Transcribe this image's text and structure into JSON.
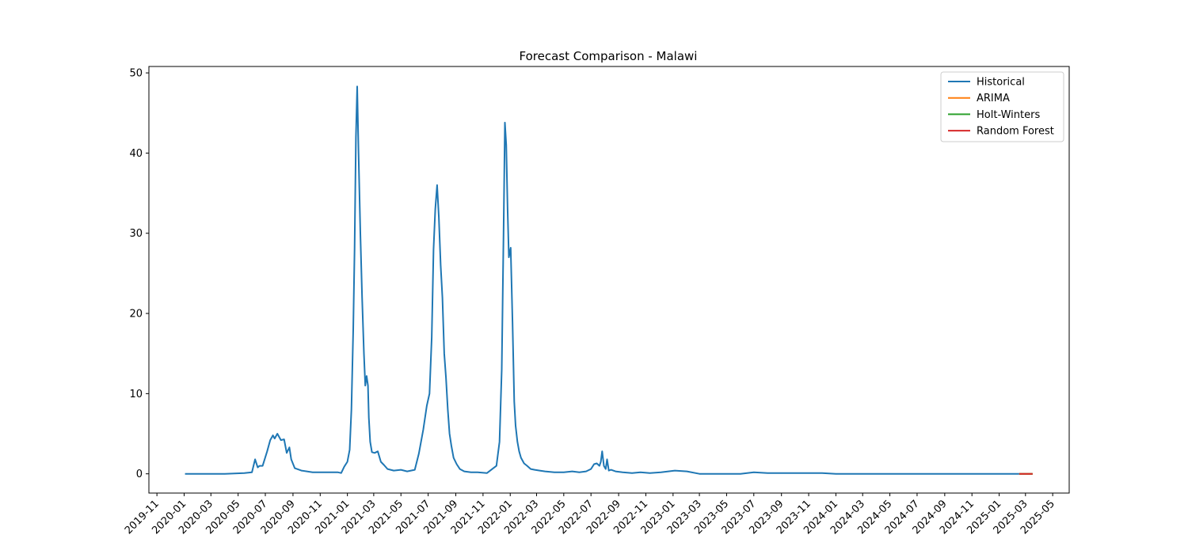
{
  "chart_data": {
    "type": "line",
    "title": "Forecast Comparison - Malawi",
    "xlabel": "",
    "ylabel": "",
    "ylim": [
      -2.4,
      50.8
    ],
    "xlim": [
      "2019-10-14",
      "2025-06-07"
    ],
    "yticks": [
      0,
      10,
      20,
      30,
      40,
      50
    ],
    "xticks": [
      "2019-11",
      "2020-01",
      "2020-03",
      "2020-05",
      "2020-07",
      "2020-09",
      "2020-11",
      "2021-01",
      "2021-03",
      "2021-05",
      "2021-07",
      "2021-09",
      "2021-11",
      "2022-01",
      "2022-03",
      "2022-05",
      "2022-07",
      "2022-09",
      "2022-11",
      "2023-01",
      "2023-03",
      "2023-05",
      "2023-07",
      "2023-09",
      "2023-11",
      "2024-01",
      "2024-03",
      "2024-05",
      "2024-07",
      "2024-09",
      "2024-11",
      "2025-01",
      "2025-03",
      "2025-05"
    ],
    "grid": false,
    "legend_position": "top-right",
    "series": [
      {
        "name": "Historical",
        "color": "#1f77b4",
        "x": [
          "2020-01-03",
          "2020-04-01",
          "2020-05-15",
          "2020-06-01",
          "2020-06-08",
          "2020-06-14",
          "2020-06-18",
          "2020-06-25",
          "2020-07-05",
          "2020-07-12",
          "2020-07-18",
          "2020-07-22",
          "2020-07-28",
          "2020-08-05",
          "2020-08-12",
          "2020-08-18",
          "2020-08-24",
          "2020-08-28",
          "2020-09-05",
          "2020-09-20",
          "2020-10-15",
          "2020-11-10",
          "2020-12-01",
          "2020-12-10",
          "2020-12-18",
          "2020-12-25",
          "2021-01-01",
          "2021-01-06",
          "2021-01-10",
          "2021-01-14",
          "2021-01-17",
          "2021-01-20",
          "2021-01-23",
          "2021-01-26",
          "2021-01-30",
          "2021-02-03",
          "2021-02-07",
          "2021-02-10",
          "2021-02-13",
          "2021-02-16",
          "2021-02-18",
          "2021-02-21",
          "2021-02-25",
          "2021-03-03",
          "2021-03-10",
          "2021-03-17",
          "2021-03-24",
          "2021-04-01",
          "2021-04-15",
          "2021-05-01",
          "2021-05-15",
          "2021-06-01",
          "2021-06-10",
          "2021-06-20",
          "2021-06-28",
          "2021-07-04",
          "2021-07-09",
          "2021-07-13",
          "2021-07-17",
          "2021-07-21",
          "2021-07-25",
          "2021-07-29",
          "2021-08-02",
          "2021-08-06",
          "2021-08-10",
          "2021-08-14",
          "2021-08-18",
          "2021-08-22",
          "2021-08-27",
          "2021-09-03",
          "2021-09-10",
          "2021-09-20",
          "2021-10-05",
          "2021-10-20",
          "2021-11-10",
          "2021-12-01",
          "2021-12-08",
          "2021-12-13",
          "2021-12-17",
          "2021-12-20",
          "2021-12-23",
          "2021-12-26",
          "2021-12-29",
          "2022-01-02",
          "2022-01-06",
          "2022-01-10",
          "2022-01-13",
          "2022-01-17",
          "2022-01-21",
          "2022-01-25",
          "2022-02-01",
          "2022-02-08",
          "2022-02-16",
          "2022-02-25",
          "2022-03-08",
          "2022-03-20",
          "2022-04-10",
          "2022-05-01",
          "2022-05-20",
          "2022-06-05",
          "2022-06-20",
          "2022-07-01",
          "2022-07-08",
          "2022-07-14",
          "2022-07-20",
          "2022-07-23",
          "2022-07-26",
          "2022-07-30",
          "2022-08-03",
          "2022-08-06",
          "2022-08-10",
          "2022-08-15",
          "2022-08-25",
          "2022-09-10",
          "2022-10-01",
          "2022-10-20",
          "2022-11-10",
          "2022-12-05",
          "2023-01-05",
          "2023-02-01",
          "2023-03-01",
          "2023-04-01",
          "2023-05-01",
          "2023-06-01",
          "2023-07-01",
          "2023-08-01",
          "2023-09-01",
          "2023-10-01",
          "2023-11-01",
          "2023-12-01",
          "2024-01-01",
          "2024-06-01",
          "2025-02-15"
        ],
        "values": [
          0.0,
          0.0,
          0.1,
          0.2,
          1.8,
          0.8,
          1.0,
          1.0,
          2.8,
          4.2,
          4.8,
          4.4,
          5.0,
          4.2,
          4.3,
          2.6,
          3.3,
          1.8,
          0.7,
          0.4,
          0.2,
          0.2,
          0.2,
          0.2,
          0.1,
          0.9,
          1.5,
          3.0,
          8.0,
          18.0,
          28.0,
          42.0,
          48.3,
          40.0,
          30.0,
          22.0,
          15.0,
          11.0,
          12.2,
          11.0,
          7.0,
          4.0,
          2.7,
          2.6,
          2.8,
          1.5,
          1.1,
          0.6,
          0.4,
          0.5,
          0.3,
          0.5,
          2.5,
          5.5,
          8.5,
          10.0,
          17.0,
          28.0,
          33.0,
          36.0,
          32.0,
          26.0,
          22.0,
          15.0,
          12.0,
          8.0,
          5.0,
          3.5,
          2.0,
          1.2,
          0.6,
          0.3,
          0.2,
          0.2,
          0.1,
          1.0,
          4.0,
          13.0,
          30.0,
          43.8,
          41.0,
          33.0,
          27.0,
          28.2,
          19.0,
          9.0,
          6.0,
          4.0,
          2.8,
          2.0,
          1.3,
          1.0,
          0.6,
          0.5,
          0.4,
          0.3,
          0.2,
          0.2,
          0.3,
          0.2,
          0.3,
          0.6,
          1.2,
          1.3,
          1.0,
          1.5,
          2.8,
          1.0,
          0.6,
          1.8,
          0.4,
          0.5,
          0.3,
          0.2,
          0.1,
          0.2,
          0.1,
          0.2,
          0.4,
          0.3,
          0.0,
          0.0,
          0.0,
          0.0,
          0.2,
          0.1,
          0.1,
          0.1,
          0.1,
          0.1,
          0.0,
          0.0,
          0.0
        ]
      },
      {
        "name": "ARIMA",
        "color": "#ff7f0e",
        "x": [
          "2025-02-15",
          "2025-03-17"
        ],
        "values": [
          0.0,
          0.0
        ]
      },
      {
        "name": "Holt-Winters",
        "color": "#2ca02c",
        "x": [
          "2025-02-15",
          "2025-03-17"
        ],
        "values": [
          0.0,
          0.0
        ]
      },
      {
        "name": "Random Forest",
        "color": "#d62728",
        "x": [
          "2025-02-15",
          "2025-03-17"
        ],
        "values": [
          0.0,
          0.0
        ]
      }
    ]
  }
}
